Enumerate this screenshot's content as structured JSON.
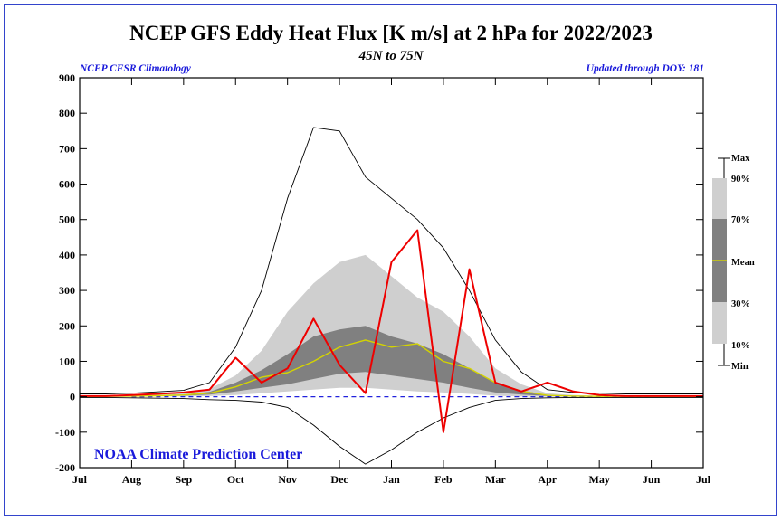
{
  "chart_data": {
    "type": "line",
    "title": "NCEP GFS Eddy Heat Flux [K m/s] at 2 hPa for 2022/2023",
    "subtitle": "45N to 75N",
    "note_left": "NCEP CFSR Climatology",
    "note_right": "Updated through DOY: 181",
    "credit": "NOAA Climate Prediction Center",
    "ylim": [
      -200,
      900
    ],
    "y_ticks": [
      -200,
      -100,
      0,
      100,
      200,
      300,
      400,
      500,
      600,
      700,
      800,
      900
    ],
    "x_ticks": [
      "Jul",
      "Aug",
      "Sep",
      "Oct",
      "Nov",
      "Dec",
      "Jan",
      "Feb",
      "Mar",
      "Apr",
      "May",
      "Jun",
      "Jul"
    ],
    "legend": [
      "Max",
      "90%",
      "70%",
      "Mean",
      "30%",
      "10%",
      "Min"
    ],
    "x": [
      0,
      0.5,
      1,
      1.5,
      2,
      2.5,
      3,
      3.5,
      4,
      4.5,
      5,
      5.5,
      6,
      6.5,
      7,
      7.5,
      8,
      8.5,
      9,
      9.5,
      10,
      10.5,
      11,
      11.5,
      12
    ],
    "series": [
      {
        "name": "Max",
        "values": [
          8,
          8,
          10,
          14,
          18,
          40,
          140,
          300,
          560,
          760,
          750,
          620,
          560,
          500,
          420,
          300,
          160,
          70,
          20,
          12,
          10,
          8,
          8,
          8,
          8
        ]
      },
      {
        "name": "90%",
        "values": [
          2,
          2,
          3,
          5,
          10,
          22,
          60,
          130,
          240,
          320,
          380,
          400,
          340,
          280,
          240,
          170,
          80,
          35,
          10,
          5,
          3,
          2,
          2,
          2,
          2
        ]
      },
      {
        "name": "70%",
        "values": [
          1,
          1,
          2,
          3,
          6,
          14,
          40,
          75,
          120,
          170,
          190,
          200,
          170,
          150,
          120,
          80,
          40,
          18,
          5,
          3,
          2,
          1,
          1,
          1,
          1
        ]
      },
      {
        "name": "Mean",
        "values": [
          1,
          1,
          2,
          3,
          5,
          10,
          28,
          55,
          68,
          100,
          140,
          160,
          140,
          150,
          100,
          80,
          40,
          16,
          4,
          2,
          1,
          1,
          1,
          1,
          1
        ]
      },
      {
        "name": "30%",
        "values": [
          0,
          0,
          1,
          2,
          3,
          6,
          15,
          25,
          35,
          50,
          65,
          70,
          60,
          50,
          40,
          25,
          12,
          6,
          2,
          1,
          0,
          0,
          0,
          0,
          0
        ]
      },
      {
        "name": "10%",
        "values": [
          0,
          0,
          0,
          1,
          1,
          2,
          5,
          10,
          15,
          20,
          25,
          25,
          20,
          15,
          12,
          8,
          3,
          1,
          0,
          0,
          0,
          0,
          0,
          0,
          0
        ]
      },
      {
        "name": "Min",
        "values": [
          -2,
          -2,
          -3,
          -4,
          -5,
          -8,
          -10,
          -15,
          -30,
          -80,
          -140,
          -190,
          -150,
          -100,
          -60,
          -30,
          -10,
          -5,
          -3,
          -2,
          -2,
          -2,
          -2,
          -2,
          -2
        ]
      },
      {
        "name": "2022/2023",
        "values": [
          2,
          2,
          5,
          8,
          12,
          20,
          110,
          40,
          80,
          220,
          90,
          10,
          380,
          470,
          -100,
          360,
          40,
          15,
          40,
          15,
          5,
          2,
          2,
          2,
          2
        ]
      }
    ]
  }
}
